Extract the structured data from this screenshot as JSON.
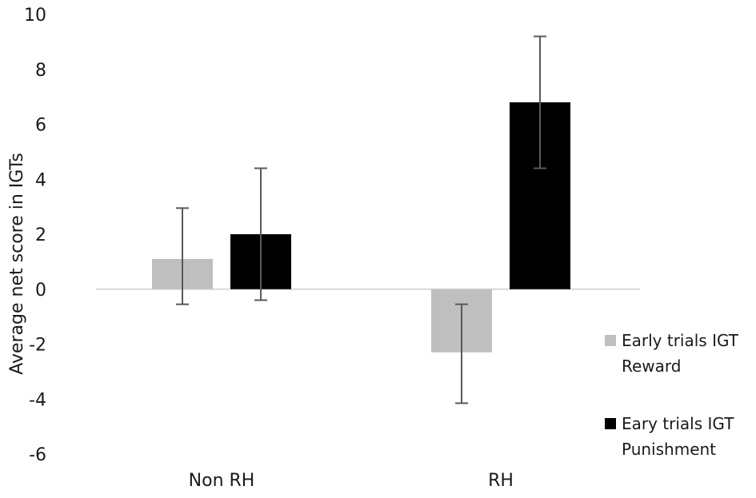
{
  "chart_data": {
    "type": "bar",
    "title": "",
    "xlabel": "",
    "ylabel": "Average net score in IGTs",
    "ylim": [
      -6,
      10
    ],
    "yticks": [
      -6,
      -4,
      -2,
      0,
      2,
      4,
      6,
      8,
      10
    ],
    "ytick_labels": [
      "-6",
      "-4",
      "-2",
      "0",
      "2",
      "4",
      "6",
      "8",
      "10"
    ],
    "categories": [
      "Non RH",
      "RH"
    ],
    "grid": false,
    "legend_position": "right",
    "series": [
      {
        "name": "Early trials IGT Reward",
        "legend_lines": [
          "Early trials IGT",
          "Reward"
        ],
        "color": "#bfbfbf",
        "values": [
          1.1,
          -2.3
        ],
        "error_low": [
          -0.55,
          -4.15
        ],
        "error_high": [
          2.95,
          -0.55
        ]
      },
      {
        "name": "Eary trials IGT Punishment",
        "legend_lines": [
          "Eary trials IGT",
          "Punishment"
        ],
        "color": "#000000",
        "values": [
          2.0,
          6.8
        ],
        "error_low": [
          -0.4,
          4.4
        ],
        "error_high": [
          4.4,
          9.2
        ]
      }
    ]
  }
}
